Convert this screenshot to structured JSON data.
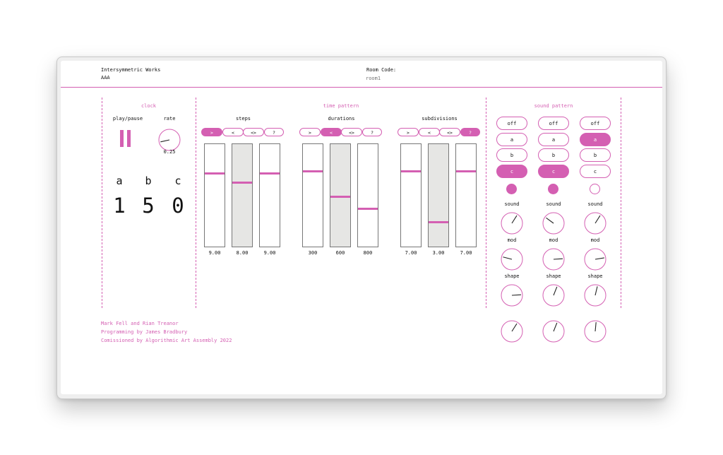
{
  "header": {
    "title": "Intersymmetric Works",
    "subtitle": "AAA",
    "room_label": "Room Code:",
    "room_placeholder": "room1"
  },
  "clock": {
    "title": "clock",
    "play_label": "play/pause",
    "rate_label": "rate",
    "rate_value": "0.25",
    "rate_fraction": 0.12,
    "letters": [
      "a",
      "b",
      "c"
    ],
    "numbers": [
      "1",
      "5",
      "0"
    ]
  },
  "time_pattern": {
    "title": "time pattern",
    "groups": [
      {
        "label": "steps",
        "buttons": [
          ">",
          "<",
          "<>",
          "?"
        ],
        "active_button": 0,
        "sliders": [
          {
            "value": "9.00",
            "level": 0.72,
            "active": false
          },
          {
            "value": "8.00",
            "level": 0.63,
            "active": true
          },
          {
            "value": "9.00",
            "level": 0.72,
            "active": false
          }
        ]
      },
      {
        "label": "durations",
        "buttons": [
          ">",
          "<",
          "<>",
          "?"
        ],
        "active_button": 1,
        "sliders": [
          {
            "value": "300",
            "level": 0.74,
            "active": false
          },
          {
            "value": "600",
            "level": 0.49,
            "active": true
          },
          {
            "value": "800",
            "level": 0.37,
            "active": false
          }
        ]
      },
      {
        "label": "subdivisions",
        "buttons": [
          ">",
          "<",
          "<>",
          "?"
        ],
        "active_button": 3,
        "sliders": [
          {
            "value": "7.00",
            "level": 0.74,
            "active": false
          },
          {
            "value": "3.00",
            "level": 0.24,
            "active": true
          },
          {
            "value": "7.00",
            "level": 0.74,
            "active": false
          }
        ]
      }
    ]
  },
  "sound_pattern": {
    "title": "sound pattern",
    "columns": [
      {
        "buttons": [
          "off",
          "a",
          "b",
          "c"
        ],
        "active": 3,
        "dot_on": true,
        "knobs": [
          {
            "label": "sound",
            "fraction": 0.62
          },
          {
            "label": "mod",
            "fraction": 0.22
          },
          {
            "label": "shape",
            "fraction": 0.82
          },
          {
            "label": "",
            "fraction": 0.62
          }
        ]
      },
      {
        "buttons": [
          "off",
          "a",
          "b",
          "c"
        ],
        "active": 3,
        "dot_on": true,
        "knobs": [
          {
            "label": "sound",
            "fraction": 0.3
          },
          {
            "label": "mod",
            "fraction": 0.82
          },
          {
            "label": "shape",
            "fraction": 0.58
          },
          {
            "label": "",
            "fraction": 0.58
          }
        ]
      },
      {
        "buttons": [
          "off",
          "a",
          "b",
          "c"
        ],
        "active": 1,
        "dot_on": false,
        "knobs": [
          {
            "label": "sound",
            "fraction": 0.62
          },
          {
            "label": "mod",
            "fraction": 0.8
          },
          {
            "label": "shape",
            "fraction": 0.55
          },
          {
            "label": "",
            "fraction": 0.52
          }
        ]
      }
    ]
  },
  "credits": [
    "Mark Fell and Rian Treanor",
    "Programming by James Bradbury",
    "Comissioned by Algorithmic Art Assembly 2022"
  ]
}
